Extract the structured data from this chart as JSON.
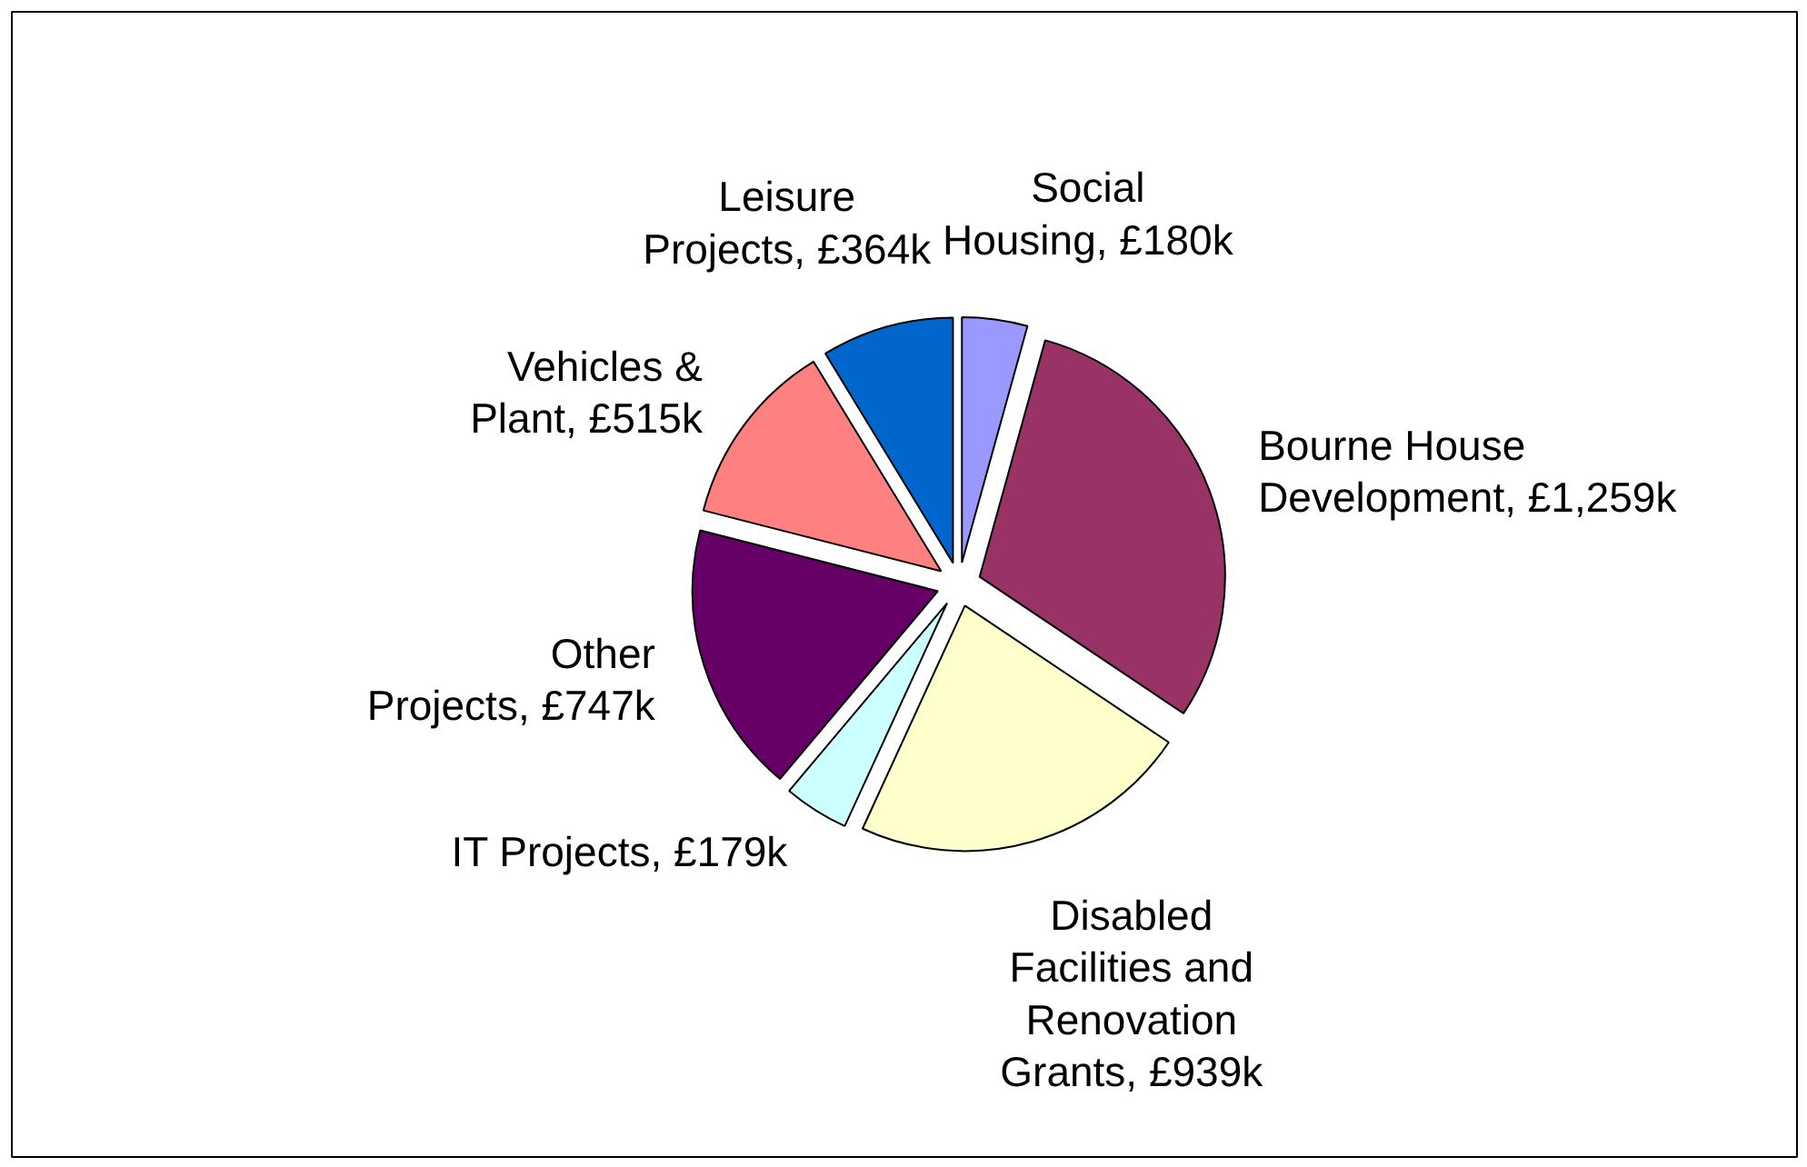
{
  "chart_data": {
    "type": "pie",
    "categories": [
      "Social Housing",
      "Bourne House Development",
      "Disabled Facilities and Renovation Grants",
      "IT Projects",
      "Other Projects",
      "Vehicles & Plant",
      "Leisure Projects"
    ],
    "values": [
      180,
      1259,
      939,
      179,
      747,
      515,
      364
    ],
    "value_labels": [
      "£180k",
      "£1,259k",
      "£939k",
      "£179k",
      "£747k",
      "£515k",
      "£364k"
    ],
    "colors": [
      "#9999ff",
      "#993366",
      "#ffffcc",
      "#ccffff",
      "#660066",
      "#ff8080",
      "#0066cc"
    ],
    "legend": false
  }
}
